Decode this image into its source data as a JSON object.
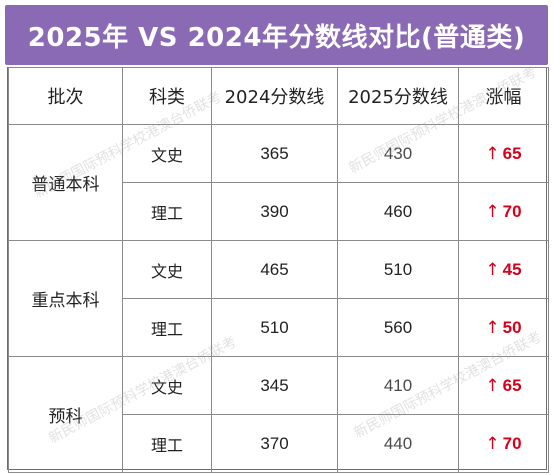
{
  "banner": {
    "title": "2025年 VS 2024年分数线对比(普通类)",
    "color": "#8a6ab5"
  },
  "table": {
    "headers": [
      "批次",
      "科类",
      "2024分数线",
      "2025分数线",
      "涨幅"
    ],
    "groups": [
      {
        "batch": "普通本科",
        "rows": [
          {
            "subject": "文史",
            "y2024": "365",
            "y2025": "430",
            "rise": "65"
          },
          {
            "subject": "理工",
            "y2024": "390",
            "y2025": "460",
            "rise": "70"
          }
        ]
      },
      {
        "batch": "重点本科",
        "rows": [
          {
            "subject": "文史",
            "y2024": "465",
            "y2025": "510",
            "rise": "45"
          },
          {
            "subject": "理工",
            "y2024": "510",
            "y2025": "560",
            "rise": "50"
          }
        ]
      },
      {
        "batch": "预科",
        "rows": [
          {
            "subject": "文史",
            "y2024": "345",
            "y2025": "410",
            "rise": "65"
          },
          {
            "subject": "理工",
            "y2024": "370",
            "y2025": "440",
            "rise": "70"
          }
        ]
      }
    ],
    "rise_arrow": "↑",
    "rise_color": "#d9001b"
  },
  "watermark": {
    "text": "新民师国际预科学校港澳台侨联考"
  }
}
